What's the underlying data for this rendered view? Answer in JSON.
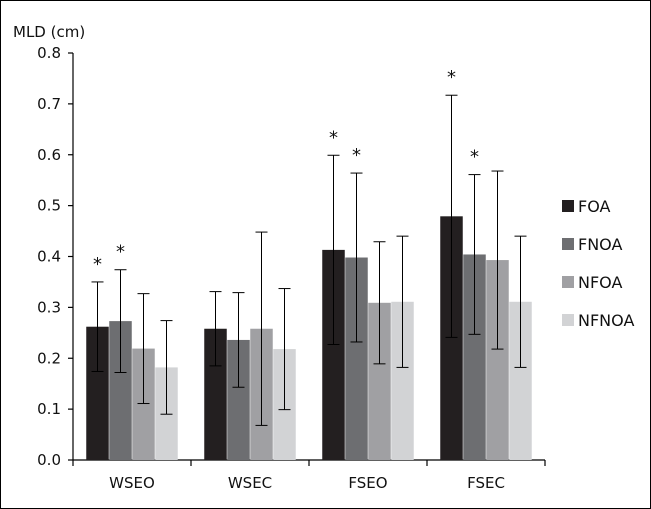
{
  "chart_data": {
    "type": "bar",
    "title": "",
    "ylabel": "MLD (cm)",
    "xlabel": "",
    "ylim": [
      0,
      0.8
    ],
    "yticks": [
      "0.0",
      "0.1",
      "0.2",
      "0.3",
      "0.4",
      "0.5",
      "0.6",
      "0.7",
      "0.8"
    ],
    "categories": [
      "WSEO",
      "WSEC",
      "FSEO",
      "FSEC"
    ],
    "legend_position": "right",
    "series": [
      {
        "name": "FOA",
        "color": "#231f20",
        "values": [
          0.262,
          0.258,
          0.413,
          0.479
        ],
        "error": [
          0.088,
          0.073,
          0.186,
          0.238
        ],
        "significant": [
          true,
          false,
          true,
          true
        ]
      },
      {
        "name": "FNOA",
        "color": "#6d6e71",
        "values": [
          0.273,
          0.236,
          0.398,
          0.404
        ],
        "error": [
          0.101,
          0.093,
          0.166,
          0.157
        ],
        "significant": [
          true,
          false,
          true,
          true
        ]
      },
      {
        "name": "NFOA",
        "color": "#a0a0a3",
        "values": [
          0.219,
          0.258,
          0.309,
          0.393
        ],
        "error": [
          0.108,
          0.19,
          0.12,
          0.175
        ],
        "significant": [
          false,
          false,
          false,
          false
        ]
      },
      {
        "name": "NFNOA",
        "color": "#d2d3d5",
        "values": [
          0.182,
          0.218,
          0.311,
          0.311
        ],
        "error": [
          0.092,
          0.119,
          0.129,
          0.129
        ],
        "significant": [
          false,
          false,
          false,
          false
        ]
      }
    ],
    "significance_marker": "*"
  }
}
